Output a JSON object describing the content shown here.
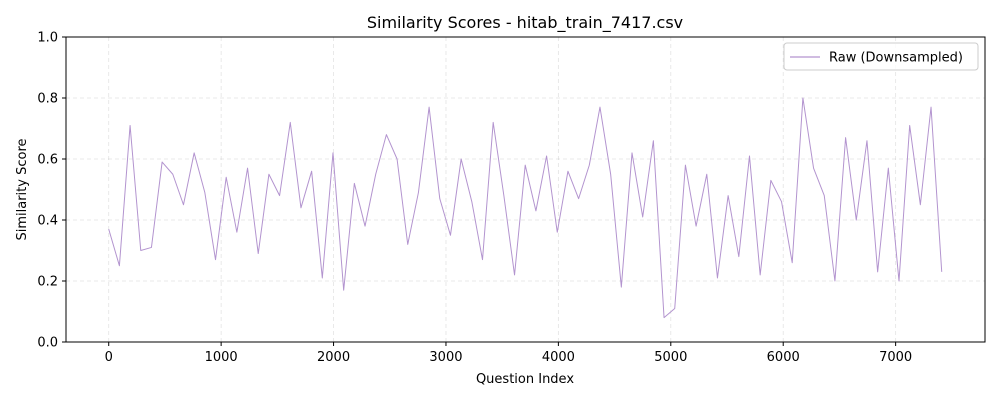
{
  "chart_data": {
    "type": "line",
    "title": "Similarity Scores - hitab_train_7417.csv",
    "xlabel": "Question Index",
    "ylabel": "Similarity Score",
    "xlim": [
      -380,
      7795
    ],
    "ylim": [
      0,
      1.0
    ],
    "xticks": [
      0,
      1000,
      2000,
      3000,
      4000,
      5000,
      6000,
      7000
    ],
    "yticks": [
      0.0,
      0.2,
      0.4,
      0.6,
      0.8,
      1.0
    ],
    "xtick_labels": [
      "0",
      "1000",
      "2000",
      "3000",
      "4000",
      "5000",
      "6000",
      "7000"
    ],
    "ytick_labels": [
      "0.0",
      "0.2",
      "0.4",
      "0.6",
      "0.8",
      "1.0"
    ],
    "grid": true,
    "legend_position": "top-right",
    "series": [
      {
        "name": "Raw (Downsampled)",
        "color": "#b394cf",
        "x": [
          0,
          95,
          190,
          285,
          380,
          475,
          570,
          665,
          760,
          855,
          950,
          1045,
          1140,
          1235,
          1330,
          1425,
          1520,
          1615,
          1710,
          1805,
          1900,
          1995,
          2090,
          2185,
          2280,
          2375,
          2470,
          2565,
          2660,
          2755,
          2850,
          2945,
          3040,
          3135,
          3230,
          3325,
          3420,
          3515,
          3610,
          3705,
          3800,
          3895,
          3990,
          4085,
          4180,
          4275,
          4370,
          4465,
          4560,
          4655,
          4750,
          4845,
          4940,
          5035,
          5130,
          5225,
          5320,
          5415,
          5510,
          5605,
          5700,
          5795,
          5890,
          5985,
          6080,
          6175,
          6270,
          6365,
          6460,
          6555,
          6650,
          6745,
          6840,
          6935,
          7030,
          7125,
          7220,
          7315,
          7410
        ],
        "values": [
          0.37,
          0.25,
          0.71,
          0.3,
          0.31,
          0.59,
          0.55,
          0.45,
          0.62,
          0.49,
          0.27,
          0.54,
          0.36,
          0.57,
          0.29,
          0.55,
          0.48,
          0.72,
          0.44,
          0.56,
          0.21,
          0.62,
          0.17,
          0.52,
          0.38,
          0.55,
          0.68,
          0.6,
          0.32,
          0.49,
          0.77,
          0.47,
          0.35,
          0.6,
          0.46,
          0.27,
          0.72,
          0.48,
          0.22,
          0.58,
          0.43,
          0.61,
          0.36,
          0.56,
          0.47,
          0.58,
          0.77,
          0.55,
          0.18,
          0.62,
          0.41,
          0.66,
          0.08,
          0.11,
          0.58,
          0.38,
          0.55,
          0.21,
          0.48,
          0.28,
          0.61,
          0.22,
          0.53,
          0.46,
          0.26,
          0.8,
          0.57,
          0.48,
          0.2,
          0.67,
          0.4,
          0.66,
          0.23,
          0.57,
          0.2,
          0.71,
          0.45,
          0.77,
          0.23
        ]
      }
    ]
  }
}
